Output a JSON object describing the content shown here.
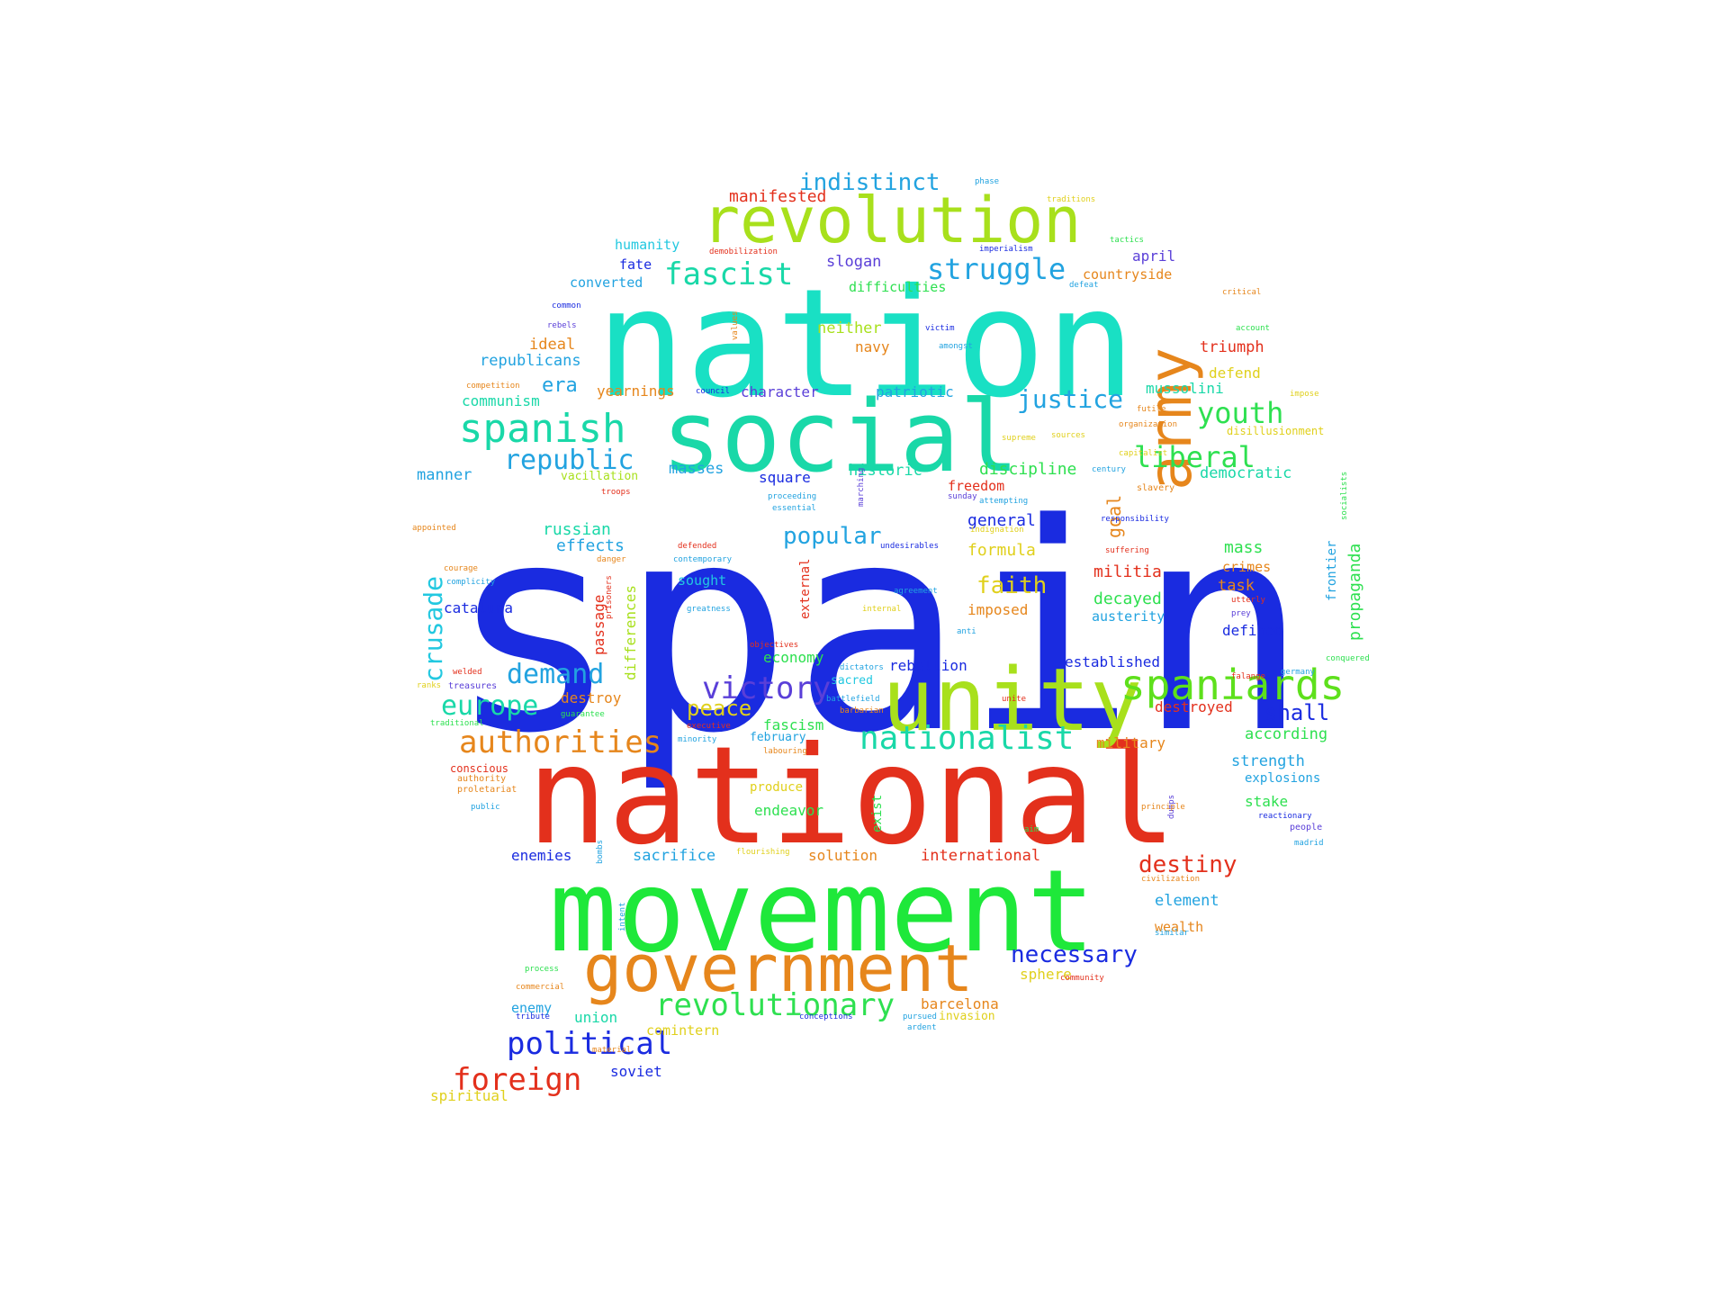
{
  "title": "",
  "palette": [
    "#1a2be0",
    "#19e0c4",
    "#e3301c",
    "#1ee83a",
    "#a8e01c",
    "#e6861c",
    "#22a3e0",
    "#5a3fd8",
    "#e0d01c"
  ],
  "words": [
    {
      "id": "spain",
      "text": "spain",
      "color": "#1a2be0"
    },
    {
      "id": "nation",
      "text": "nation",
      "color": "#19e0c4"
    },
    {
      "id": "national",
      "text": "national",
      "color": "#e3301c"
    },
    {
      "id": "movement",
      "text": "movement",
      "color": "#1ee83a"
    },
    {
      "id": "social",
      "text": "social",
      "color": "#19d8a8"
    },
    {
      "id": "unity",
      "text": "unity",
      "color": "#a8e01c"
    },
    {
      "id": "revolution",
      "text": "revolution",
      "color": "#a8e01c"
    },
    {
      "id": "government",
      "text": "government",
      "color": "#e6861c"
    },
    {
      "id": "army",
      "text": "army",
      "color": "#e6861c"
    },
    {
      "id": "spaniards",
      "text": "spaniards",
      "color": "#5ee01c"
    },
    {
      "id": "spanish",
      "text": "spanish",
      "color": "#19d8a8"
    },
    {
      "id": "nationalist",
      "text": "nationalist",
      "color": "#19d8a8"
    },
    {
      "id": "revolutionary",
      "text": "revolutionary",
      "color": "#2ee050"
    },
    {
      "id": "struggle",
      "text": "struggle",
      "color": "#22a3e0"
    },
    {
      "id": "fascist",
      "text": "fascist",
      "color": "#19d8a8"
    },
    {
      "id": "political",
      "text": "political",
      "color": "#1a2be0"
    },
    {
      "id": "foreign",
      "text": "foreign",
      "color": "#e3301c"
    },
    {
      "id": "authorities",
      "text": "authorities",
      "color": "#e6861c"
    },
    {
      "id": "victory",
      "text": "victory",
      "color": "#5a3fd8"
    },
    {
      "id": "europe",
      "text": "europe",
      "color": "#19d8a8"
    },
    {
      "id": "demand",
      "text": "demand",
      "color": "#22a3e0"
    },
    {
      "id": "republic",
      "text": "republic",
      "color": "#22a3e0"
    },
    {
      "id": "liberal",
      "text": "liberal",
      "color": "#2ee050"
    },
    {
      "id": "youth",
      "text": "youth",
      "color": "#2ee050"
    },
    {
      "id": "justice",
      "text": "justice",
      "color": "#22a3e0"
    },
    {
      "id": "indistinct",
      "text": "indistinct",
      "color": "#22a3e0"
    },
    {
      "id": "necessary",
      "text": "necessary",
      "color": "#1a2be0"
    },
    {
      "id": "destiny",
      "text": "destiny",
      "color": "#e3301c"
    },
    {
      "id": "popular",
      "text": "popular",
      "color": "#22a3e0"
    },
    {
      "id": "crusade",
      "text": "crusade",
      "color": "#22c8e0"
    },
    {
      "id": "faith",
      "text": "faith",
      "color": "#e0d01c"
    },
    {
      "id": "peace",
      "text": "peace",
      "color": "#e0d01c"
    },
    {
      "id": "shall",
      "text": "shall",
      "color": "#1a2be0"
    },
    {
      "id": "manifested",
      "text": "manifested",
      "color": "#e3301c"
    },
    {
      "id": "era",
      "text": "era",
      "color": "#22a3e0"
    },
    {
      "id": "mass",
      "text": "mass",
      "color": "#2ee050"
    },
    {
      "id": "propaganda",
      "text": "propaganda",
      "color": "#2ee050"
    },
    {
      "id": "goal",
      "text": "goal",
      "color": "#e6861c"
    },
    {
      "id": "russian",
      "text": "russian",
      "color": "#19d8a8"
    },
    {
      "id": "effects",
      "text": "effects",
      "color": "#22a3e0"
    },
    {
      "id": "general",
      "text": "general",
      "color": "#1a2be0"
    },
    {
      "id": "formula",
      "text": "formula",
      "color": "#e0d01c"
    },
    {
      "id": "militia",
      "text": "militia",
      "color": "#e3301c"
    },
    {
      "id": "decayed",
      "text": "decayed",
      "color": "#2ee050"
    },
    {
      "id": "democratic",
      "text": "democratic",
      "color": "#19d8a8"
    },
    {
      "id": "discipline",
      "text": "discipline",
      "color": "#2ee050"
    },
    {
      "id": "historic",
      "text": "historic",
      "color": "#19d8a8"
    },
    {
      "id": "square",
      "text": "square",
      "color": "#1a2be0"
    },
    {
      "id": "masses",
      "text": "masses",
      "color": "#22a3e0"
    },
    {
      "id": "manner",
      "text": "manner",
      "color": "#22a3e0"
    },
    {
      "id": "republicans",
      "text": "republicans",
      "color": "#22a3e0"
    },
    {
      "id": "communism",
      "text": "communism",
      "color": "#19d8a8"
    },
    {
      "id": "yearnings",
      "text": "yearnings",
      "color": "#e6861c"
    },
    {
      "id": "character",
      "text": "character",
      "color": "#5a3fd8"
    },
    {
      "id": "patriotic",
      "text": "patriotic",
      "color": "#22a3e0"
    },
    {
      "id": "mussolini",
      "text": "mussolini",
      "color": "#19d8a8"
    },
    {
      "id": "defend",
      "text": "defend",
      "color": "#e0d01c"
    },
    {
      "id": "triumph",
      "text": "triumph",
      "color": "#e3301c"
    },
    {
      "id": "ideal",
      "text": "ideal",
      "color": "#e6861c"
    },
    {
      "id": "neither",
      "text": "neither",
      "color": "#a8e01c"
    },
    {
      "id": "navy",
      "text": "navy",
      "color": "#e6861c"
    },
    {
      "id": "slogan",
      "text": "slogan",
      "color": "#5a3fd8"
    },
    {
      "id": "difficulties",
      "text": "difficulties",
      "color": "#2ee050"
    },
    {
      "id": "countryside",
      "text": "countryside",
      "color": "#e6861c"
    },
    {
      "id": "april",
      "text": "april",
      "color": "#5a3fd8"
    },
    {
      "id": "humanity",
      "text": "humanity",
      "color": "#22c8e0"
    },
    {
      "id": "fate",
      "text": "fate",
      "color": "#1a2be0"
    },
    {
      "id": "converted",
      "text": "converted",
      "color": "#22a3e0"
    },
    {
      "id": "freedom",
      "text": "freedom",
      "color": "#e3301c"
    },
    {
      "id": "vacillation",
      "text": "vacillation",
      "color": "#a8e01c"
    },
    {
      "id": "sought",
      "text": "sought",
      "color": "#22c8e0"
    },
    {
      "id": "passage",
      "text": "passage",
      "color": "#e3301c"
    },
    {
      "id": "differences",
      "text": "differences",
      "color": "#a8e01c"
    },
    {
      "id": "cataluna",
      "text": "cataluna",
      "color": "#1a2be0"
    },
    {
      "id": "economy",
      "text": "economy",
      "color": "#2ee050"
    },
    {
      "id": "rebellion",
      "text": "rebellion",
      "color": "#1a2be0"
    },
    {
      "id": "established",
      "text": "established",
      "color": "#1a2be0"
    },
    {
      "id": "defined",
      "text": "defined",
      "color": "#1a2be0"
    },
    {
      "id": "task",
      "text": "task",
      "color": "#e6861c"
    },
    {
      "id": "crimes",
      "text": "crimes",
      "color": "#e6861c"
    },
    {
      "id": "austerity",
      "text": "austerity",
      "color": "#22a3e0"
    },
    {
      "id": "imposed",
      "text": "imposed",
      "color": "#e6861c"
    },
    {
      "id": "destroyed",
      "text": "destroyed",
      "color": "#e3301c"
    },
    {
      "id": "according",
      "text": "according",
      "color": "#2ee050"
    },
    {
      "id": "military",
      "text": "military",
      "color": "#e6861c"
    },
    {
      "id": "strength",
      "text": "strength",
      "color": "#22a3e0"
    },
    {
      "id": "explosions",
      "text": "explosions",
      "color": "#22a3e0"
    },
    {
      "id": "stake",
      "text": "stake",
      "color": "#2ee050"
    },
    {
      "id": "destroy",
      "text": "destroy",
      "color": "#e6861c"
    },
    {
      "id": "sacred",
      "text": "sacred",
      "color": "#22c8e0"
    },
    {
      "id": "fascism",
      "text": "fascism",
      "color": "#2ee050"
    },
    {
      "id": "february",
      "text": "february",
      "color": "#22a3e0"
    },
    {
      "id": "produce",
      "text": "produce",
      "color": "#e0d01c"
    },
    {
      "id": "endeavor",
      "text": "endeavor",
      "color": "#2ee050"
    },
    {
      "id": "external",
      "text": "external",
      "color": "#e3301c"
    },
    {
      "id": "exist",
      "text": "exist",
      "color": "#2ee050"
    },
    {
      "id": "frontier",
      "text": "frontier",
      "color": "#22a3e0"
    },
    {
      "id": "solution",
      "text": "solution",
      "color": "#e6861c"
    },
    {
      "id": "international",
      "text": "international",
      "color": "#e3301c"
    },
    {
      "id": "sacrifice",
      "text": "sacrifice",
      "color": "#22a3e0"
    },
    {
      "id": "enemies",
      "text": "enemies",
      "color": "#1a2be0"
    },
    {
      "id": "element",
      "text": "element",
      "color": "#22a3e0"
    },
    {
      "id": "wealth",
      "text": "wealth",
      "color": "#e6861c"
    },
    {
      "id": "sphere",
      "text": "sphere",
      "color": "#e0d01c"
    },
    {
      "id": "barcelona",
      "text": "barcelona",
      "color": "#e6861c"
    },
    {
      "id": "invasion",
      "text": "invasion",
      "color": "#e0d01c"
    },
    {
      "id": "comintern",
      "text": "comintern",
      "color": "#e0d01c"
    },
    {
      "id": "enemy",
      "text": "enemy",
      "color": "#22a3e0"
    },
    {
      "id": "union",
      "text": "union",
      "color": "#19d8a8"
    },
    {
      "id": "soviet",
      "text": "soviet",
      "color": "#1a2be0"
    },
    {
      "id": "spiritual",
      "text": "spiritual",
      "color": "#e0d01c"
    },
    {
      "id": "conscious",
      "text": "conscious",
      "color": "#e3301c"
    },
    {
      "id": "authority",
      "text": "authority",
      "color": "#e6861c"
    },
    {
      "id": "proletariat",
      "text": "proletariat",
      "color": "#e6861c"
    },
    {
      "id": "public",
      "text": "public",
      "color": "#22a3e0"
    },
    {
      "id": "commercial",
      "text": "commercial",
      "color": "#e6861c"
    },
    {
      "id": "process",
      "text": "process",
      "color": "#2ee050"
    },
    {
      "id": "tribute",
      "text": "tribute",
      "color": "#1a2be0"
    },
    {
      "id": "conceptions",
      "text": "conceptions",
      "color": "#1a2be0"
    },
    {
      "id": "pursued",
      "text": "pursued",
      "color": "#22a3e0"
    },
    {
      "id": "ardent",
      "text": "ardent",
      "color": "#22a3e0"
    },
    {
      "id": "community",
      "text": "community",
      "color": "#e3301c"
    },
    {
      "id": "similar",
      "text": "similar",
      "color": "#22a3e0"
    },
    {
      "id": "civilization",
      "text": "civilization",
      "color": "#e6861c"
    },
    {
      "id": "madrid",
      "text": "madrid",
      "color": "#22a3e0"
    },
    {
      "id": "people",
      "text": "people",
      "color": "#5a3fd8"
    },
    {
      "id": "reactionary",
      "text": "reactionary",
      "color": "#1a2be0"
    },
    {
      "id": "dumps",
      "text": "dumps",
      "color": "#5a3fd8"
    },
    {
      "id": "flourishing",
      "text": "flourishing",
      "color": "#e0d01c"
    },
    {
      "id": "bombs",
      "text": "bombs",
      "color": "#22a3e0"
    },
    {
      "id": "intent",
      "text": "intent",
      "color": "#22a3e0"
    },
    {
      "id": "material",
      "text": "material",
      "color": "#e6861c"
    },
    {
      "id": "guarantee",
      "text": "guarantee",
      "color": "#2ee050"
    },
    {
      "id": "traditional",
      "text": "traditional",
      "color": "#2ee050"
    },
    {
      "id": "treasures",
      "text": "treasures",
      "color": "#5a3fd8"
    },
    {
      "id": "ranks",
      "text": "ranks",
      "color": "#e0d01c"
    },
    {
      "id": "welded",
      "text": "welded",
      "color": "#e3301c"
    },
    {
      "id": "complicity",
      "text": "complicity",
      "color": "#22a3e0"
    },
    {
      "id": "courage",
      "text": "courage",
      "color": "#e6861c"
    },
    {
      "id": "appointed",
      "text": "appointed",
      "color": "#e6861c"
    },
    {
      "id": "competition",
      "text": "competition",
      "color": "#e6861c"
    },
    {
      "id": "rebels",
      "text": "rebels",
      "color": "#5a3fd8"
    },
    {
      "id": "common",
      "text": "common",
      "color": "#1a2be0"
    },
    {
      "id": "council",
      "text": "council",
      "color": "#1a2be0"
    },
    {
      "id": "values",
      "text": "values",
      "color": "#e6861c"
    },
    {
      "id": "victim",
      "text": "victim",
      "color": "#1a2be0"
    },
    {
      "id": "amongst",
      "text": "amongst",
      "color": "#22a3e0"
    },
    {
      "id": "marching",
      "text": "marching",
      "color": "#5a3fd8"
    },
    {
      "id": "troops",
      "text": "troops",
      "color": "#e3301c"
    },
    {
      "id": "proceeding",
      "text": "proceeding",
      "color": "#22a3e0"
    },
    {
      "id": "essential",
      "text": "essential",
      "color": "#22a3e0"
    },
    {
      "id": "defended",
      "text": "defended",
      "color": "#e3301c"
    },
    {
      "id": "contemporary",
      "text": "contemporary",
      "color": "#22a3e0"
    },
    {
      "id": "danger",
      "text": "danger",
      "color": "#e6861c"
    },
    {
      "id": "prisoners",
      "text": "prisoners",
      "color": "#e3301c"
    },
    {
      "id": "greatness",
      "text": "greatness",
      "color": "#22a3e0"
    },
    {
      "id": "objectives",
      "text": "objectives",
      "color": "#e3301c"
    },
    {
      "id": "dictators",
      "text": "dictators",
      "color": "#22a3e0"
    },
    {
      "id": "battlefield",
      "text": "battlefield",
      "color": "#22a3e0"
    },
    {
      "id": "barbarian",
      "text": "barbarian",
      "color": "#e6861c"
    },
    {
      "id": "executive",
      "text": "executive",
      "color": "#e3301c"
    },
    {
      "id": "minority",
      "text": "minority",
      "color": "#22a3e0"
    },
    {
      "id": "labouring",
      "text": "labouring",
      "color": "#e6861c"
    },
    {
      "id": "internal",
      "text": "internal",
      "color": "#e0d01c"
    },
    {
      "id": "anti",
      "text": "anti",
      "color": "#22a3e0"
    },
    {
      "id": "agreement",
      "text": "agreement",
      "color": "#22a3e0"
    },
    {
      "id": "undesirables",
      "text": "undesirables",
      "color": "#1a2be0"
    },
    {
      "id": "indignation",
      "text": "indignation",
      "color": "#e0d01c"
    },
    {
      "id": "attempting",
      "text": "attempting",
      "color": "#22a3e0"
    },
    {
      "id": "sunday",
      "text": "sunday",
      "color": "#5a3fd8"
    },
    {
      "id": "suffering",
      "text": "suffering",
      "color": "#e3301c"
    },
    {
      "id": "responsibility",
      "text": "responsibility",
      "color": "#1a2be0"
    },
    {
      "id": "slavery",
      "text": "slavery",
      "color": "#e6861c"
    },
    {
      "id": "capitalist",
      "text": "capitalist",
      "color": "#e0d01c"
    },
    {
      "id": "century",
      "text": "century",
      "color": "#22a3e0"
    },
    {
      "id": "socialists",
      "text": "socialists",
      "color": "#2ee050"
    },
    {
      "id": "sources",
      "text": "sources",
      "color": "#e0d01c"
    },
    {
      "id": "supreme",
      "text": "supreme",
      "color": "#e0d01c"
    },
    {
      "id": "disillusionment",
      "text": "disillusionment",
      "color": "#e0d01c"
    },
    {
      "id": "organization",
      "text": "organization",
      "color": "#e6861c"
    },
    {
      "id": "futile",
      "text": "futile",
      "color": "#e6861c"
    },
    {
      "id": "impose",
      "text": "impose",
      "color": "#e0d01c"
    },
    {
      "id": "account",
      "text": "account",
      "color": "#2ee050"
    },
    {
      "id": "critical",
      "text": "critical",
      "color": "#e6861c"
    },
    {
      "id": "defeat",
      "text": "defeat",
      "color": "#22a3e0"
    },
    {
      "id": "tactics",
      "text": "tactics",
      "color": "#2ee050"
    },
    {
      "id": "imperialism",
      "text": "imperialism",
      "color": "#1a2be0"
    },
    {
      "id": "demobilization",
      "text": "demobilization",
      "color": "#e3301c"
    },
    {
      "id": "phase",
      "text": "phase",
      "color": "#22a3e0"
    },
    {
      "id": "traditions",
      "text": "traditions",
      "color": "#e0d01c"
    },
    {
      "id": "principle",
      "text": "principle",
      "color": "#e6861c"
    },
    {
      "id": "unite",
      "text": "unite",
      "color": "#e3301c"
    },
    {
      "id": "aim",
      "text": "aim",
      "color": "#2ee050"
    },
    {
      "id": "utterly",
      "text": "utterly",
      "color": "#e3301c"
    },
    {
      "id": "prey",
      "text": "prey",
      "color": "#5a3fd8"
    },
    {
      "id": "falange",
      "text": "falange",
      "color": "#e3301c"
    },
    {
      "id": "germany",
      "text": "germany",
      "color": "#22a3e0"
    },
    {
      "id": "conquered",
      "text": "conquered",
      "color": "#2ee050"
    }
  ]
}
